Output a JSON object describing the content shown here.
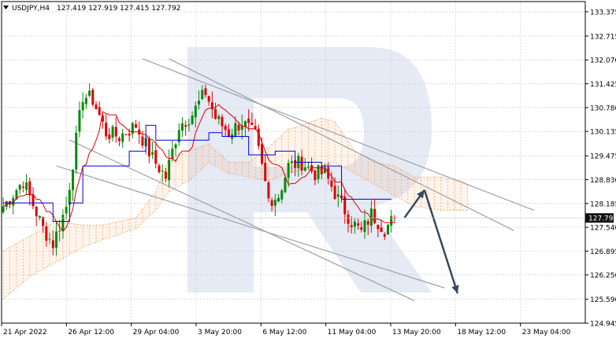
{
  "header": {
    "symbol": "USDJPY,H4",
    "ohlc": "127.419 127.919 127.415 127.792"
  },
  "colors": {
    "bull": "#0a8a0a",
    "bear": "#e00000",
    "tenkan": "#e00000",
    "kijun": "#0000dd",
    "cloud": "#f5a260",
    "trendline": "#a0a0a8",
    "arrow": "#36495e",
    "grid": "#c6c6c6",
    "price_tag_bg": "#111111",
    "watermark": "#b4c4e2"
  },
  "chart_data": {
    "type": "candlestick",
    "ylim": [
      124.945,
      133.65
    ],
    "current_price": "127.792",
    "y_ticks": [
      "133.375",
      "132.715",
      "132.070",
      "131.425",
      "130.780",
      "130.135",
      "129.475",
      "128.830",
      "128.185",
      "127.540",
      "126.895",
      "126.250",
      "125.590",
      "124.945"
    ],
    "x_ticks": [
      "21 Apr 2022",
      "26 Apr 12:00",
      "29 Apr 04:00",
      "3 May 20:00",
      "6 May 12:00",
      "11 May 04:00",
      "13 May 20:00",
      "18 May 12:00",
      "23 May 04:00"
    ],
    "anchors": [
      {
        "i": 0,
        "p": 128.1
      },
      {
        "i": 6,
        "p": 128.8
      },
      {
        "i": 12,
        "p": 127.5
      },
      {
        "i": 15,
        "p": 127.1
      },
      {
        "i": 19,
        "p": 128.1
      },
      {
        "i": 24,
        "p": 131.1
      },
      {
        "i": 27,
        "p": 131.0
      },
      {
        "i": 31,
        "p": 130.1
      },
      {
        "i": 35,
        "p": 130.0
      },
      {
        "i": 40,
        "p": 130.3
      },
      {
        "i": 45,
        "p": 129.4
      },
      {
        "i": 49,
        "p": 128.9
      },
      {
        "i": 53,
        "p": 130.3
      },
      {
        "i": 57,
        "p": 130.6
      },
      {
        "i": 61,
        "p": 131.2
      },
      {
        "i": 64,
        "p": 130.5
      },
      {
        "i": 68,
        "p": 130.1
      },
      {
        "i": 72,
        "p": 130.4
      },
      {
        "i": 76,
        "p": 130.0
      },
      {
        "i": 80,
        "p": 128.3
      },
      {
        "i": 83,
        "p": 128.4
      },
      {
        "i": 86,
        "p": 129.2
      },
      {
        "i": 90,
        "p": 129.3
      },
      {
        "i": 94,
        "p": 129.0
      },
      {
        "i": 97,
        "p": 129.0
      },
      {
        "i": 101,
        "p": 128.3
      },
      {
        "i": 105,
        "p": 127.7
      },
      {
        "i": 108,
        "p": 127.4
      },
      {
        "i": 111,
        "p": 127.9
      },
      {
        "i": 115,
        "p": 127.5
      },
      {
        "i": 118,
        "p": 127.79
      }
    ],
    "kijun": [
      [
        0,
        128.2
      ],
      [
        10,
        128.2
      ],
      [
        15,
        127.7
      ],
      [
        20,
        128.2
      ],
      [
        24,
        129.2
      ],
      [
        34,
        129.2
      ],
      [
        38,
        129.6
      ],
      [
        43,
        130.3
      ],
      [
        46,
        129.9
      ],
      [
        52,
        129.9
      ],
      [
        58,
        129.9
      ],
      [
        62,
        130.1
      ],
      [
        66,
        130.0
      ],
      [
        70,
        130.0
      ],
      [
        74,
        129.5
      ],
      [
        78,
        129.5
      ],
      [
        82,
        129.6
      ],
      [
        88,
        129.3
      ],
      [
        92,
        129.3
      ],
      [
        96,
        129.2
      ],
      [
        100,
        129.2
      ],
      [
        102,
        128.3
      ],
      [
        110,
        128.3
      ],
      [
        117,
        128.3
      ]
    ],
    "cloud_upper": [
      [
        0,
        126.9
      ],
      [
        8,
        127.3
      ],
      [
        16,
        127.7
      ],
      [
        24,
        127.6
      ],
      [
        30,
        127.6
      ],
      [
        40,
        127.8
      ],
      [
        46,
        128.5
      ],
      [
        50,
        129.4
      ],
      [
        56,
        129.6
      ],
      [
        62,
        129.8
      ],
      [
        68,
        129.3
      ],
      [
        74,
        129.3
      ],
      [
        80,
        129.7
      ],
      [
        86,
        130.2
      ],
      [
        90,
        130.3
      ],
      [
        96,
        130.5
      ],
      [
        100,
        130.4
      ],
      [
        106,
        129.6
      ],
      [
        112,
        129.3
      ],
      [
        118,
        129.2
      ],
      [
        124,
        128.9
      ],
      [
        132,
        128.9
      ],
      [
        138,
        128.8
      ],
      [
        140,
        128.7
      ]
    ],
    "cloud_lower": [
      [
        0,
        125.6
      ],
      [
        8,
        126.2
      ],
      [
        16,
        126.6
      ],
      [
        24,
        127.0
      ],
      [
        30,
        127.2
      ],
      [
        40,
        127.5
      ],
      [
        46,
        128.0
      ],
      [
        50,
        128.5
      ],
      [
        56,
        128.8
      ],
      [
        62,
        129.3
      ],
      [
        68,
        129.0
      ],
      [
        74,
        128.9
      ],
      [
        80,
        128.8
      ],
      [
        86,
        129.0
      ],
      [
        90,
        129.1
      ],
      [
        96,
        129.2
      ],
      [
        100,
        129.3
      ],
      [
        106,
        129.0
      ],
      [
        112,
        128.7
      ],
      [
        118,
        128.4
      ],
      [
        124,
        128.1
      ],
      [
        132,
        128.0
      ],
      [
        138,
        128.0
      ],
      [
        140,
        128.0
      ]
    ],
    "trendlines": [
      {
        "from": [
          42,
          132.1
        ],
        "to": [
          160,
          128.0
        ]
      },
      {
        "from": [
          50,
          132.1
        ],
        "to": [
          154,
          127.45
        ]
      },
      {
        "from": [
          20,
          129.9
        ],
        "to": [
          124,
          125.55
        ]
      },
      {
        "from": [
          16,
          129.2
        ],
        "to": [
          133,
          125.9
        ]
      }
    ],
    "forecast_arrows": [
      {
        "from": [
          121,
          127.8
        ],
        "to": [
          127,
          128.55
        ]
      },
      {
        "from": [
          127,
          128.55
        ],
        "to": [
          137,
          125.75
        ]
      }
    ]
  }
}
